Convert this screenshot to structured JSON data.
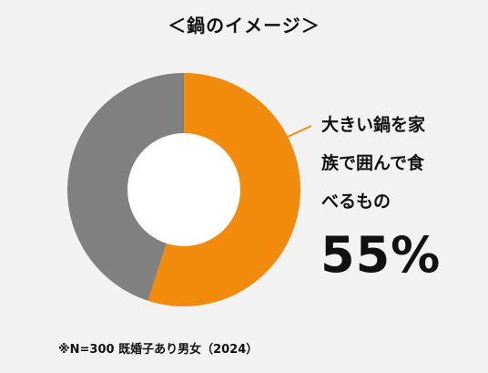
{
  "title": "＜鍋のイメージ＞",
  "chart_data": {
    "type": "pie",
    "style": "donut",
    "slices": [
      {
        "label": "大きい鍋を家族で囲んで食べるもの",
        "value": 55,
        "color": "#f28a0c"
      },
      {
        "label": "",
        "value": 45,
        "color": "#808080"
      }
    ],
    "annotation": {
      "lines": [
        "大きい鍋を家",
        "族で囲んで食",
        "べるもの"
      ],
      "value_label": "55%"
    }
  },
  "footnote": "※N=300 既婚子あり男女（2024）"
}
